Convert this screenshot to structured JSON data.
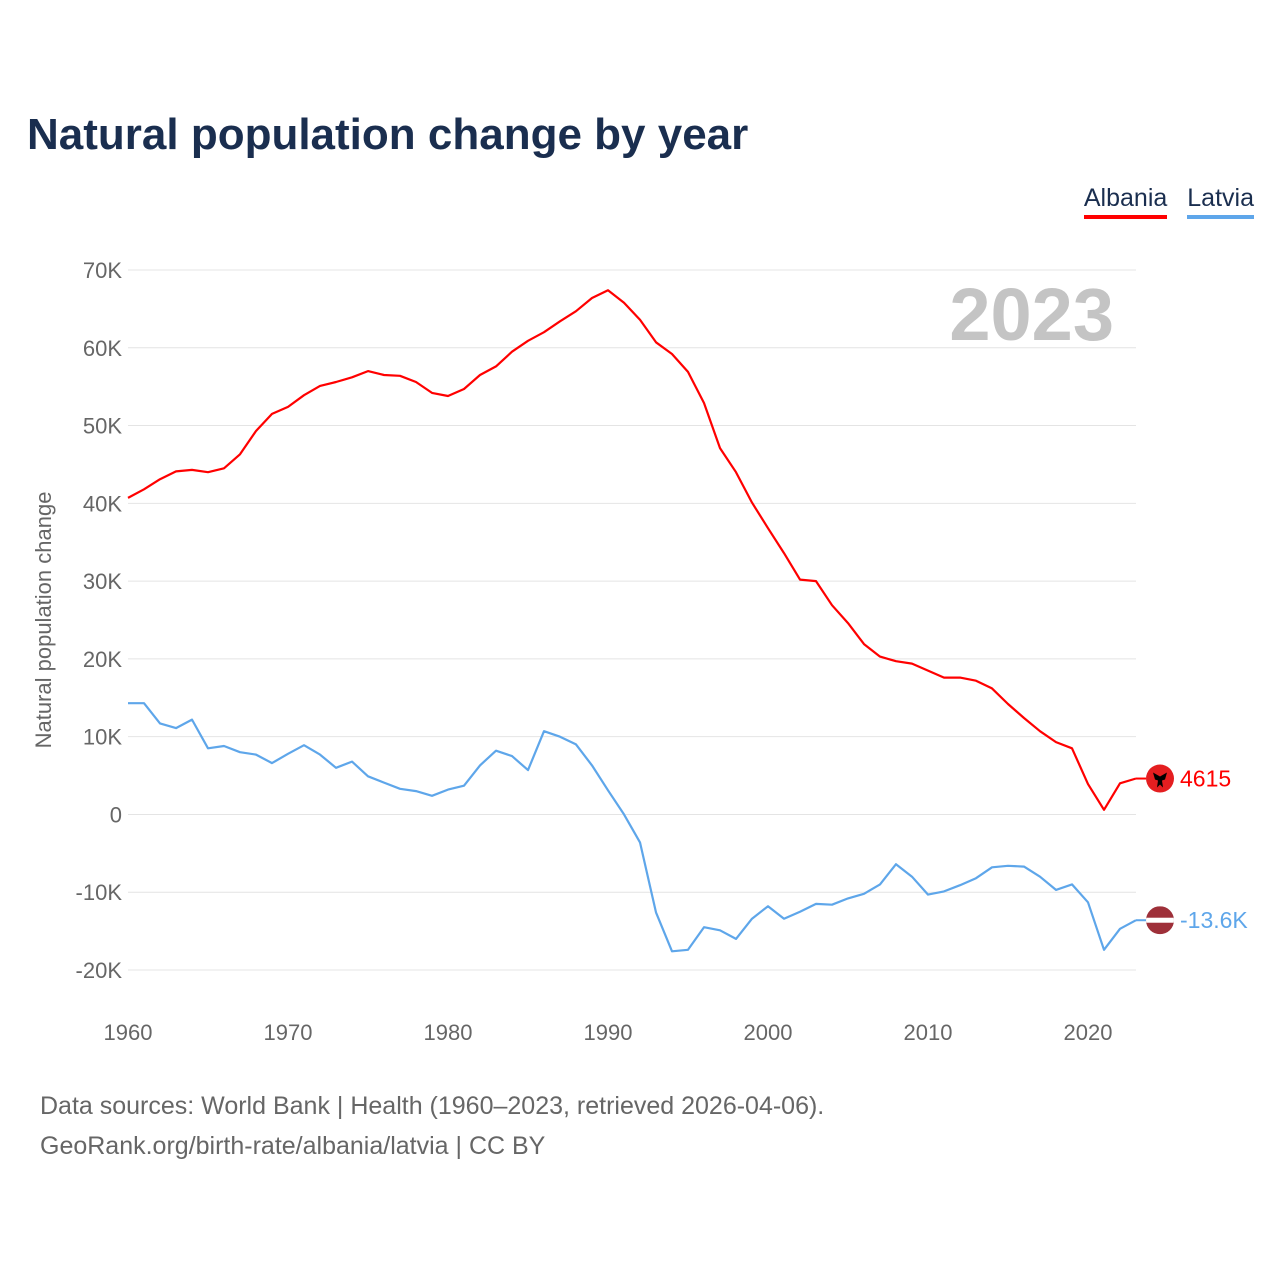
{
  "chart_data": {
    "type": "line",
    "title": "Natural population change by year",
    "xlabel": "",
    "ylabel": "Natural population change",
    "xlim": [
      1960,
      2023
    ],
    "ylim": [
      -20000,
      70000
    ],
    "grid": true,
    "legend_placement": "top-right",
    "year_watermark": "2023",
    "x_ticks": [
      "1960",
      "1970",
      "1980",
      "1990",
      "2000",
      "2010",
      "2020"
    ],
    "y_ticks": [
      {
        "value": 70000,
        "label": "70K"
      },
      {
        "value": 60000,
        "label": "60K"
      },
      {
        "value": 50000,
        "label": "50K"
      },
      {
        "value": 40000,
        "label": "40K"
      },
      {
        "value": 30000,
        "label": "30K"
      },
      {
        "value": 20000,
        "label": "20K"
      },
      {
        "value": 10000,
        "label": "10K"
      },
      {
        "value": 0,
        "label": "0"
      },
      {
        "value": -10000,
        "label": "-10K"
      },
      {
        "value": -20000,
        "label": "-20K"
      }
    ],
    "x_start": 1960,
    "series": [
      {
        "name": "Albania",
        "color": "#ff0000",
        "end_label": "4615",
        "flag": "albania-flag-icon",
        "values": [
          40700,
          41800,
          43100,
          44100,
          44300,
          44000,
          44500,
          46300,
          49300,
          51500,
          52400,
          53900,
          55100,
          55600,
          56200,
          57000,
          56500,
          56400,
          55600,
          54200,
          53800,
          54700,
          56500,
          57600,
          59500,
          60900,
          62000,
          63400,
          64700,
          66400,
          67400,
          65800,
          63600,
          60700,
          59200,
          56900,
          52900,
          47100,
          44000,
          40100,
          36800,
          33600,
          30200,
          30000,
          26900,
          24600,
          21900,
          20300,
          19700,
          19400,
          18500,
          17600,
          17600,
          17200,
          16200,
          14200,
          12400,
          10700,
          9300,
          8500,
          3900,
          600,
          4000,
          4615
        ]
      },
      {
        "name": "Latvia",
        "color": "#5ea6ea",
        "end_label": "-13.6K",
        "flag": "latvia-flag-icon",
        "values": [
          14300,
          14300,
          11700,
          11100,
          12200,
          8500,
          8800,
          8000,
          7700,
          6600,
          7800,
          8900,
          7700,
          6000,
          6800,
          4900,
          4100,
          3300,
          3000,
          2400,
          3200,
          3700,
          6300,
          8200,
          7500,
          5700,
          10700,
          10000,
          9000,
          6300,
          3100,
          0,
          -3600,
          -12600,
          -17600,
          -17400,
          -14500,
          -14900,
          -16000,
          -13400,
          -11800,
          -13400,
          -12500,
          -11500,
          -11600,
          -10800,
          -10200,
          -9000,
          -6400,
          -8000,
          -10300,
          -9900,
          -9100,
          -8200,
          -6800,
          -6600,
          -6700,
          -8000,
          -9700,
          -9000,
          -11300,
          -17400,
          -14700,
          -13600
        ]
      }
    ]
  },
  "footer": {
    "line1": "Data sources: World Bank | Health (1960–2023, retrieved 2026-04-06).",
    "line2": "GeoRank.org/birth-rate/albania/latvia | CC BY"
  }
}
